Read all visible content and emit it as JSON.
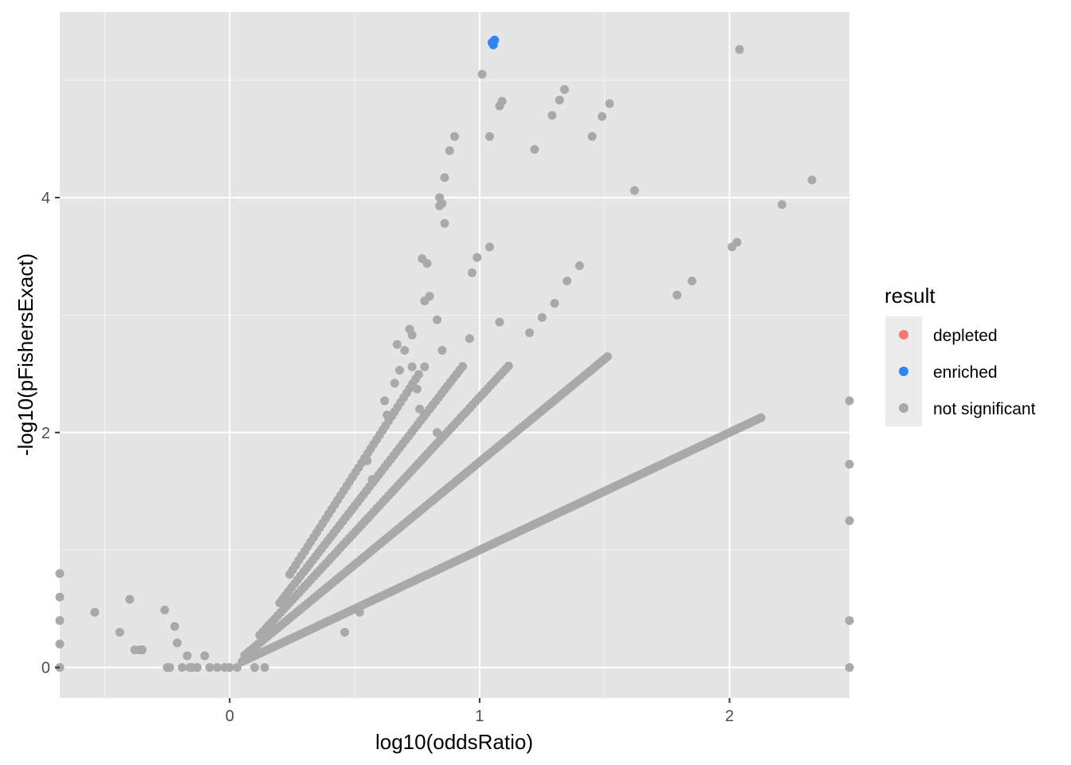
{
  "chart_data": {
    "type": "scatter",
    "xlabel": "log10(oddsRatio)",
    "ylabel": "-log10(pFishersExact)",
    "xlim": [
      -0.68,
      2.48
    ],
    "ylim": [
      -0.26,
      5.58
    ],
    "xticks": [
      0,
      1,
      2
    ],
    "yticks": [
      0,
      2,
      4
    ],
    "grid": true,
    "legend": {
      "title": "result",
      "position": "right",
      "entries": [
        {
          "label": "depleted",
          "color": "#F8766D"
        },
        {
          "label": "enriched",
          "color": "#2E86F5"
        },
        {
          "label": "not significant",
          "color": "#A9A9A9"
        }
      ]
    },
    "series": [
      {
        "name": "enriched",
        "color": "#2E86F5",
        "points": [
          [
            1.05,
            5.32
          ],
          [
            1.06,
            5.34
          ],
          [
            1.055,
            5.3
          ]
        ]
      },
      {
        "name": "not significant",
        "color": "#A9A9A9",
        "curves": [
          {
            "k": 1.0,
            "x_from": 0.05,
            "x_to": 2.13,
            "step": 0.012
          },
          {
            "k": 1.75,
            "x_from": 0.06,
            "x_to": 1.52,
            "step": 0.011
          },
          {
            "k": 2.3,
            "x_from": 0.12,
            "x_to": 1.12,
            "step": 0.012
          },
          {
            "k": 2.75,
            "x_from": 0.2,
            "x_to": 0.94,
            "step": 0.012
          },
          {
            "k": 3.3,
            "x_from": 0.24,
            "x_to": 0.76,
            "step": 0.012
          }
        ],
        "points": [
          [
            -0.68,
            0.8
          ],
          [
            -0.68,
            0.6
          ],
          [
            -0.68,
            0.4
          ],
          [
            -0.68,
            0.2
          ],
          [
            -0.68,
            0.0
          ],
          [
            -0.54,
            0.47
          ],
          [
            -0.44,
            0.3
          ],
          [
            -0.4,
            0.58
          ],
          [
            -0.38,
            0.15
          ],
          [
            -0.36,
            0.15
          ],
          [
            -0.35,
            0.15
          ],
          [
            -0.26,
            0.49
          ],
          [
            -0.25,
            0.0
          ],
          [
            -0.24,
            0.0
          ],
          [
            -0.22,
            0.35
          ],
          [
            -0.21,
            0.21
          ],
          [
            -0.19,
            0.0
          ],
          [
            -0.17,
            0.1
          ],
          [
            -0.16,
            0.0
          ],
          [
            -0.15,
            0.0
          ],
          [
            -0.13,
            0.0
          ],
          [
            -0.1,
            0.1
          ],
          [
            -0.08,
            0.0
          ],
          [
            -0.05,
            0.0
          ],
          [
            -0.02,
            0.0
          ],
          [
            0.0,
            0.0
          ],
          [
            0.03,
            0.0
          ],
          [
            0.1,
            0.0
          ],
          [
            0.14,
            0.0
          ],
          [
            0.46,
            0.3
          ],
          [
            0.52,
            0.47
          ],
          [
            1.01,
            5.05
          ],
          [
            1.04,
            4.52
          ],
          [
            1.08,
            4.78
          ],
          [
            1.09,
            4.82
          ],
          [
            1.22,
            4.41
          ],
          [
            1.29,
            4.7
          ],
          [
            1.32,
            4.83
          ],
          [
            1.34,
            4.92
          ],
          [
            1.45,
            4.52
          ],
          [
            1.49,
            4.69
          ],
          [
            1.52,
            4.8
          ],
          [
            1.62,
            4.06
          ],
          [
            2.01,
            3.58
          ],
          [
            2.03,
            3.62
          ],
          [
            2.04,
            5.26
          ],
          [
            2.21,
            3.94
          ],
          [
            2.33,
            4.15
          ],
          [
            1.79,
            3.17
          ],
          [
            1.85,
            3.29
          ],
          [
            1.4,
            3.42
          ],
          [
            1.35,
            3.29
          ],
          [
            1.3,
            3.1
          ],
          [
            1.25,
            2.98
          ],
          [
            1.2,
            2.85
          ],
          [
            1.08,
            2.94
          ],
          [
            0.9,
            4.52
          ],
          [
            0.88,
            4.4
          ],
          [
            0.86,
            4.17
          ],
          [
            0.84,
            4.0
          ],
          [
            0.85,
            3.95
          ],
          [
            0.84,
            3.93
          ],
          [
            0.86,
            3.78
          ],
          [
            0.78,
            3.12
          ],
          [
            0.8,
            3.16
          ],
          [
            0.83,
            2.96
          ],
          [
            0.78,
            2.56
          ],
          [
            0.85,
            2.7
          ],
          [
            0.77,
            3.48
          ],
          [
            0.79,
            3.44
          ],
          [
            0.97,
            3.36
          ],
          [
            0.99,
            3.49
          ],
          [
            1.04,
            3.58
          ],
          [
            0.96,
            2.8
          ],
          [
            0.76,
            2.2
          ],
          [
            0.75,
            2.37
          ],
          [
            0.72,
            2.88
          ],
          [
            0.73,
            2.83
          ],
          [
            0.7,
            2.7
          ],
          [
            0.68,
            2.53
          ],
          [
            0.73,
            2.56
          ],
          [
            0.83,
            2.0
          ],
          [
            0.63,
            2.15
          ],
          [
            0.62,
            2.27
          ],
          [
            0.66,
            2.42
          ],
          [
            0.67,
            2.75
          ],
          [
            0.55,
            1.76
          ],
          [
            0.57,
            1.6
          ],
          [
            2.48,
            2.27
          ],
          [
            2.48,
            1.73
          ],
          [
            2.48,
            1.25
          ],
          [
            2.48,
            0.4
          ],
          [
            2.48,
            0.0
          ]
        ]
      }
    ]
  }
}
